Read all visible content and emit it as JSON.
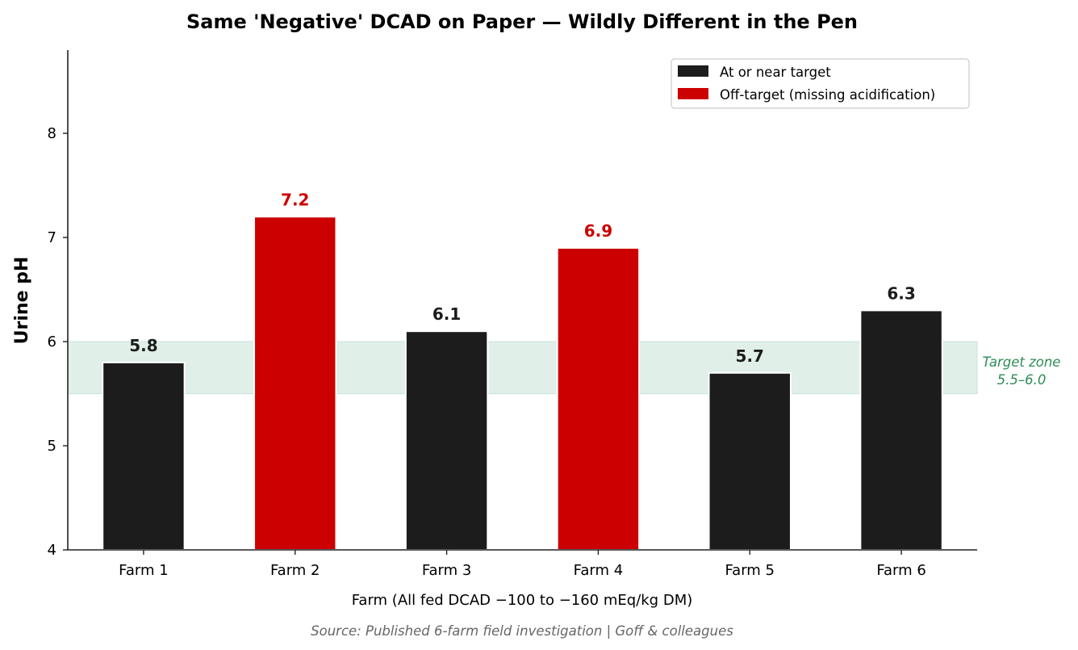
{
  "chart_data": {
    "type": "bar",
    "title": "Same 'Negative' DCAD on Paper — Wildly Different in the Pen",
    "xlabel": "Farm  (All fed DCAD −100 to −160 mEq/kg DM)",
    "ylabel": "Urine pH",
    "categories": [
      "Farm 1",
      "Farm 2",
      "Farm 3",
      "Farm 4",
      "Farm 5",
      "Farm 6"
    ],
    "values": [
      5.8,
      7.2,
      6.1,
      6.9,
      5.7,
      6.3
    ],
    "value_labels": [
      "5.8",
      "7.2",
      "6.1",
      "6.9",
      "5.7",
      "6.3"
    ],
    "status": [
      "on",
      "off",
      "on",
      "off",
      "on",
      "on"
    ],
    "ylim": [
      4,
      8.8
    ],
    "yticks": [
      4,
      5,
      6,
      7,
      8
    ],
    "ytick_labels": [
      "4",
      "5",
      "6",
      "7",
      "8"
    ],
    "grid": false,
    "target_zone": {
      "low": 5.5,
      "high": 6.0,
      "label_line1": "Target zone",
      "label_line2": "5.5–6.0",
      "color": "#2e8b57",
      "fill": "#e0efe8"
    },
    "legend": {
      "position": "top-right",
      "entries": [
        {
          "label": "At or near target",
          "color": "#1c1c1c"
        },
        {
          "label": "Off-target (missing acidification)",
          "color": "#cc0000"
        }
      ]
    },
    "colors": {
      "on": "#1c1c1c",
      "off": "#cc0000"
    },
    "source": "Source: Published 6-farm field investigation | Goff & colleagues"
  }
}
